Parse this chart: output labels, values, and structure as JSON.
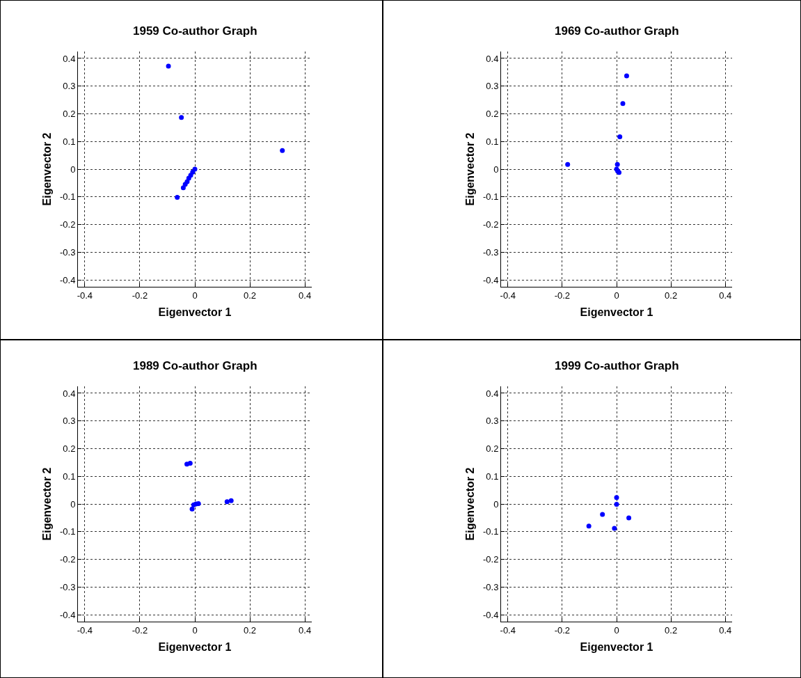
{
  "chart_data": [
    {
      "type": "scatter",
      "title": "1959 Co-author Graph",
      "xlabel": "Eigenvector 1",
      "ylabel": "Eigenvector 2",
      "color": "#0000ff",
      "marker": "circle",
      "grid": true,
      "x": [
        -0.096,
        -0.049,
        0.318,
        -0.064,
        -0.042,
        -0.035,
        -0.028,
        -0.022,
        -0.015,
        -0.008,
        0
      ],
      "values": [
        0.372,
        0.187,
        0.067,
        -0.102,
        -0.067,
        -0.055,
        -0.045,
        -0.033,
        -0.022,
        -0.011,
        0
      ],
      "xlim": [
        -0.425,
        0.425
      ],
      "ylim": [
        -0.425,
        0.425
      ],
      "xticks": [
        -0.4,
        -0.2,
        0,
        0.2,
        0.4
      ],
      "yticks": [
        -0.4,
        -0.3,
        -0.2,
        -0.1,
        0,
        0.1,
        0.2,
        0.3,
        0.4
      ]
    },
    {
      "type": "scatter",
      "title": "1969 Co-author Graph",
      "xlabel": "Eigenvector 1",
      "ylabel": "Eigenvector 2",
      "color": "#0000ff",
      "marker": "circle",
      "grid": true,
      "x": [
        0.037,
        0.023,
        0.012,
        -0.18,
        0.003,
        0,
        0.004,
        0.009
      ],
      "values": [
        0.337,
        0.237,
        0.117,
        0.017,
        0.017,
        0,
        -0.007,
        -0.012
      ],
      "xlim": [
        -0.425,
        0.425
      ],
      "ylim": [
        -0.425,
        0.425
      ],
      "xticks": [
        -0.4,
        -0.2,
        0,
        0.2,
        0.4
      ],
      "yticks": [
        -0.4,
        -0.3,
        -0.2,
        -0.1,
        0,
        0.1,
        0.2,
        0.3,
        0.4
      ]
    },
    {
      "type": "scatter",
      "title": "1989 Co-author Graph",
      "xlabel": "Eigenvector 1",
      "ylabel": "Eigenvector 2",
      "color": "#0000ff",
      "marker": "circle",
      "grid": true,
      "x": [
        -0.029,
        -0.017,
        0.117,
        0.132,
        -0.01,
        -0.004,
        0.004,
        0.013
      ],
      "values": [
        0.144,
        0.147,
        0.008,
        0.012,
        -0.018,
        -0.003,
        0,
        0.001
      ],
      "xlim": [
        -0.425,
        0.425
      ],
      "ylim": [
        -0.425,
        0.425
      ],
      "xticks": [
        -0.4,
        -0.2,
        0,
        0.2,
        0.4
      ],
      "yticks": [
        -0.4,
        -0.3,
        -0.2,
        -0.1,
        0,
        0.1,
        0.2,
        0.3,
        0.4
      ]
    },
    {
      "type": "scatter",
      "title": "1999 Co-author Graph",
      "xlabel": "Eigenvector 1",
      "ylabel": "Eigenvector 2",
      "color": "#0000ff",
      "marker": "circle",
      "grid": true,
      "x": [
        -0.102,
        -0.052,
        -0.008,
        0.045,
        0,
        0
      ],
      "values": [
        -0.08,
        -0.038,
        -0.088,
        -0.05,
        0.023,
        -0.001
      ],
      "xlim": [
        -0.425,
        0.425
      ],
      "ylim": [
        -0.425,
        0.425
      ],
      "xticks": [
        -0.4,
        -0.2,
        0,
        0.2,
        0.4
      ],
      "yticks": [
        -0.4,
        -0.3,
        -0.2,
        -0.1,
        0,
        0.1,
        0.2,
        0.3,
        0.4
      ]
    }
  ]
}
